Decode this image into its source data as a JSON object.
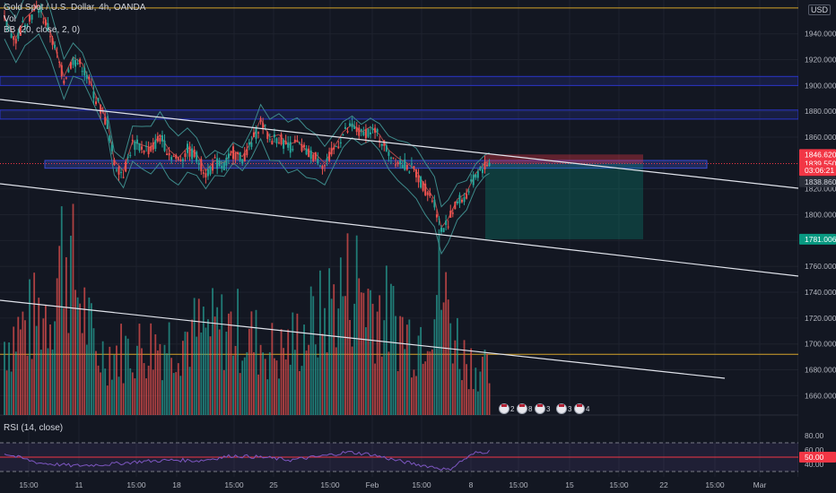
{
  "header": {
    "symbol_line": "Gold Spot / U.S. Dollar, 4h, OANDA",
    "vol_label": "Vol",
    "bb_label": "BB (20, close, 2, 0)",
    "rsi_label": "RSI (14, close)",
    "currency": "USD"
  },
  "price_axis": {
    "ticks": [
      "1940.000",
      "1920.000",
      "1900.000",
      "1880.000",
      "1860.000",
      "1820.000",
      "1800.000",
      "1780.000",
      "1760.000",
      "1740.000",
      "1720.000",
      "1700.000",
      "1680.000",
      "1660.000"
    ],
    "tick_values": [
      1940,
      1920,
      1900,
      1880,
      1860,
      1820,
      1800,
      1780,
      1760,
      1740,
      1720,
      1700,
      1680,
      1660
    ],
    "labels": [
      {
        "text": "1846.620",
        "value": 1846.62,
        "bg": "#f23645",
        "fg": "#ffffff"
      },
      {
        "text": "1839.550",
        "value": 1839.55,
        "bg": "#f23645",
        "fg": "#ffffff"
      },
      {
        "text": "03:06:21",
        "value": 1834.2,
        "bg": "#f23645",
        "fg": "#ffffff"
      },
      {
        "text": "1838.860",
        "value": 1825.5,
        "bg": "#2a2e39",
        "fg": "#d1d4dc"
      },
      {
        "text": "1781.006",
        "value": 1781.0,
        "bg": "#089981",
        "fg": "#ffffff"
      }
    ]
  },
  "rsi_axis": {
    "ticks": [
      "80.00",
      "60.00",
      "40.00"
    ],
    "tick_values": [
      80,
      60,
      40
    ],
    "label": {
      "text": "50.00",
      "value": 50,
      "bg": "#f23645",
      "fg": "#ffffff"
    }
  },
  "time_axis": [
    "15:00",
    "11",
    "15:00",
    "18",
    "15:00",
    "25",
    "15:00",
    "Feb",
    "15:00",
    "8",
    "15:00",
    "15",
    "15:00",
    "22",
    "15:00",
    "Mar"
  ],
  "event_badges": [
    "2",
    "8",
    "3",
    "3",
    "4"
  ],
  "colors": {
    "up": "#26a69a",
    "down": "#ef5350",
    "zone": "#1e2a8c",
    "bb": "#3d8a8a",
    "basis": "#b04a4a",
    "rsi_line": "#7e57c2",
    "orange": "#d4a32a"
  },
  "chart_data": {
    "type": "candlestick",
    "title": "Gold Spot / U.S. Dollar, 4h, OANDA",
    "price_range": [
      1645,
      1962
    ],
    "rsi_range": [
      25,
      85
    ],
    "price_path": [
      [
        0,
        1950
      ],
      [
        5,
        1935
      ],
      [
        9,
        1950
      ],
      [
        15,
        1960
      ],
      [
        20,
        1940
      ],
      [
        26,
        1905
      ],
      [
        30,
        1920
      ],
      [
        34,
        1915
      ],
      [
        40,
        1890
      ],
      [
        45,
        1870
      ],
      [
        48,
        1840
      ],
      [
        52,
        1832
      ],
      [
        56,
        1855
      ],
      [
        60,
        1852
      ],
      [
        64,
        1850
      ],
      [
        68,
        1860
      ],
      [
        72,
        1848
      ],
      [
        76,
        1842
      ],
      [
        80,
        1850
      ],
      [
        84,
        1845
      ],
      [
        88,
        1832
      ],
      [
        92,
        1840
      ],
      [
        96,
        1838
      ],
      [
        100,
        1848
      ],
      [
        104,
        1843
      ],
      [
        108,
        1855
      ],
      [
        112,
        1872
      ],
      [
        116,
        1858
      ],
      [
        120,
        1860
      ],
      [
        124,
        1852
      ],
      [
        128,
        1855
      ],
      [
        132,
        1848
      ],
      [
        136,
        1845
      ],
      [
        140,
        1838
      ],
      [
        144,
        1850
      ],
      [
        148,
        1862
      ],
      [
        152,
        1868
      ],
      [
        156,
        1862
      ],
      [
        160,
        1866
      ],
      [
        164,
        1860
      ],
      [
        168,
        1848
      ],
      [
        172,
        1842
      ],
      [
        176,
        1838
      ],
      [
        180,
        1832
      ],
      [
        184,
        1820
      ],
      [
        188,
        1810
      ],
      [
        191,
        1788
      ],
      [
        194,
        1795
      ],
      [
        198,
        1810
      ],
      [
        202,
        1815
      ],
      [
        206,
        1830
      ],
      [
        210,
        1838
      ],
      [
        212,
        1840
      ]
    ],
    "volume_path": [
      [
        0,
        110
      ],
      [
        20,
        160
      ],
      [
        26,
        260
      ],
      [
        40,
        90
      ],
      [
        60,
        100
      ],
      [
        80,
        120
      ],
      [
        100,
        130
      ],
      [
        120,
        90
      ],
      [
        140,
        150
      ],
      [
        145,
        180
      ],
      [
        154,
        200
      ],
      [
        160,
        170
      ],
      [
        180,
        110
      ],
      [
        190,
        195
      ],
      [
        200,
        90
      ],
      [
        212,
        60
      ]
    ],
    "rsi_path": [
      [
        0,
        55
      ],
      [
        15,
        42
      ],
      [
        30,
        38
      ],
      [
        45,
        40
      ],
      [
        60,
        44
      ],
      [
        75,
        46
      ],
      [
        85,
        45
      ],
      [
        100,
        52
      ],
      [
        112,
        50
      ],
      [
        125,
        46
      ],
      [
        140,
        52
      ],
      [
        150,
        57
      ],
      [
        160,
        54
      ],
      [
        172,
        45
      ],
      [
        180,
        40
      ],
      [
        188,
        36
      ],
      [
        194,
        32
      ],
      [
        200,
        45
      ],
      [
        206,
        56
      ],
      [
        212,
        58
      ]
    ],
    "levels": {
      "resistance_zones": [
        [
          1900,
          1907
        ],
        [
          1874,
          1881
        ]
      ],
      "entry_zone": [
        1836,
        1842
      ],
      "orange_lines": [
        1960,
        1692
      ],
      "current_price": 1839.55,
      "short_position": {
        "entry": 1839.55,
        "stop": 1846.62,
        "target": 1781.006
      },
      "rsi_band": [
        30,
        70
      ],
      "rsi_mid": 50
    }
  }
}
